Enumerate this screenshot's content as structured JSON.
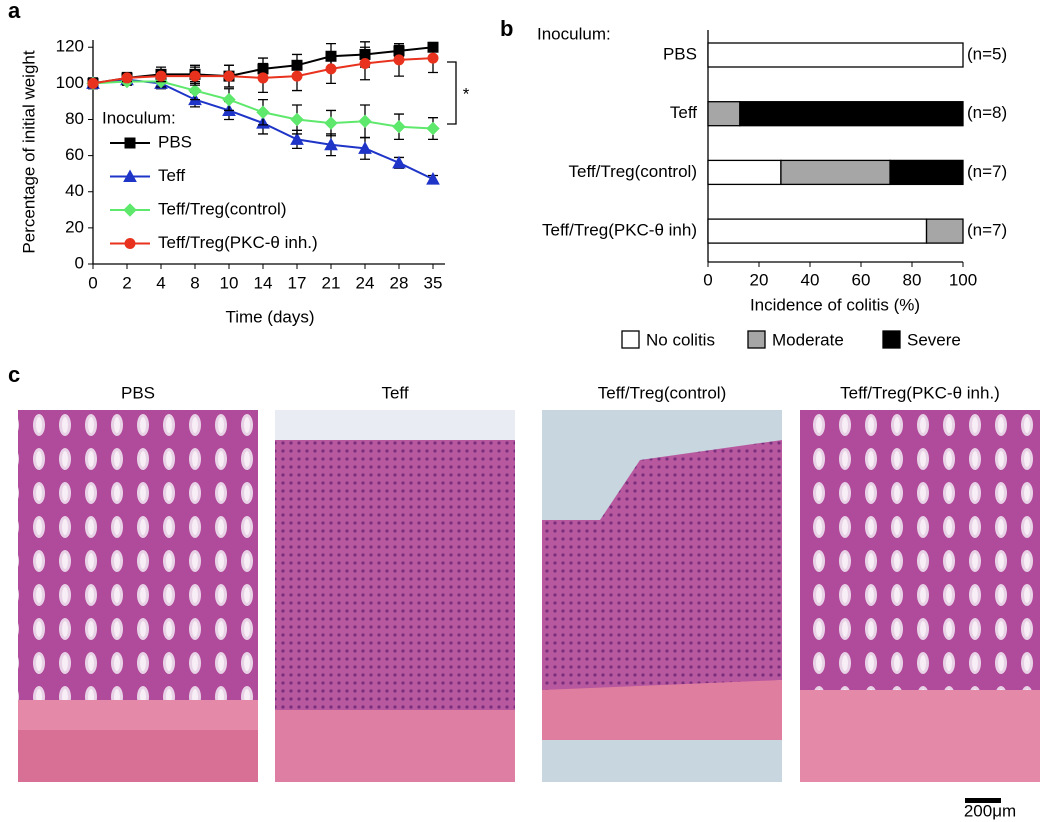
{
  "panel_labels": [
    "a",
    "b",
    "c"
  ],
  "chart_data": [
    {
      "type": "line",
      "y_label": "Percentage of initial weight",
      "x_label": "Time (days)",
      "categories": [
        "0",
        "2",
        "4",
        "8",
        "10",
        "14",
        "17",
        "21",
        "24",
        "28",
        "35"
      ],
      "ylim": [
        0,
        124
      ],
      "yticks": [
        0,
        20,
        40,
        60,
        80,
        100,
        120
      ],
      "legend_title": "Inoculum:",
      "annotation": "*",
      "series": [
        {
          "name": "PBS",
          "color": "#000000",
          "marker": "square",
          "values": [
            100,
            103,
            105,
            105,
            104,
            108,
            110,
            115,
            116,
            118,
            120
          ],
          "errors": [
            3,
            3,
            4,
            5,
            6,
            6,
            6,
            7,
            7,
            3,
            2
          ]
        },
        {
          "name": "Teff",
          "color": "#1f35c8",
          "marker": "triangle",
          "values": [
            100,
            102,
            100,
            91,
            85,
            78,
            69,
            66,
            64,
            56,
            47
          ],
          "errors": [
            2,
            3,
            3,
            4,
            5,
            6,
            5,
            6,
            6,
            3,
            2
          ]
        },
        {
          "name": "Teff/Treg(control)",
          "color": "#5ee86c",
          "marker": "diamond",
          "values": [
            100,
            101,
            101,
            96,
            91,
            84,
            80,
            78,
            79,
            76,
            75
          ],
          "errors": [
            2,
            2,
            3,
            5,
            6,
            7,
            8,
            7,
            9,
            7,
            6
          ]
        },
        {
          "name": "Teff/Treg(PKC-θ inh.)",
          "color": "#e8321e",
          "marker": "circle",
          "values": [
            100,
            103,
            104,
            104,
            104,
            103,
            104,
            108,
            111,
            113,
            114
          ],
          "errors": [
            2,
            2,
            3,
            5,
            6,
            8,
            8,
            8,
            9,
            9,
            8
          ]
        }
      ]
    },
    {
      "type": "bar",
      "orientation": "horizontal",
      "stacked": true,
      "annotation": "Inoculum:",
      "x_label": "Incidence of colitis (%)",
      "categories": [
        "PBS",
        "Teff",
        "Teff/Treg(control)",
        "Teff/Treg(PKC-θ inh)"
      ],
      "n_labels": [
        "(n=5)",
        "(n=8)",
        "(n=7)",
        "(n=7)"
      ],
      "xlim": [
        0,
        100
      ],
      "xticks": [
        0,
        20,
        40,
        60,
        80,
        100
      ],
      "series": [
        {
          "name": "No colitis",
          "color": "#ffffff",
          "values": [
            100,
            0,
            28.6,
            85.7
          ]
        },
        {
          "name": "Moderate",
          "color": "#a6a6a6",
          "values": [
            0,
            12.5,
            42.8,
            14.3
          ]
        },
        {
          "name": "Severe",
          "color": "#000000",
          "values": [
            0,
            87.5,
            28.6,
            0
          ]
        }
      ]
    }
  ],
  "histology": {
    "titles": [
      "PBS",
      "Teff",
      "Teff/Treg(control)",
      "Teff/Treg(PKC-θ inh.)"
    ],
    "scale_bar": "200μm"
  }
}
